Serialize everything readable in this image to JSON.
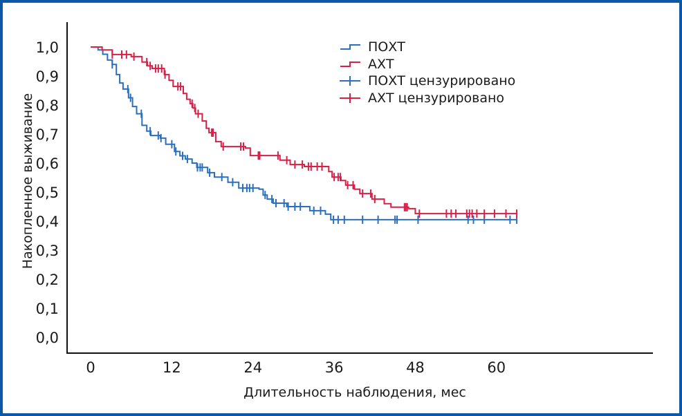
{
  "chart_data": {
    "type": "line",
    "subtype": "kaplan-meier",
    "title": "",
    "xlabel": "Длительность наблюдения, мес",
    "ylabel": "Накопленное выживание",
    "xlim": [
      0,
      83
    ],
    "ylim": [
      0,
      1.0
    ],
    "x_ticks": [
      0,
      12,
      24,
      36,
      48,
      60
    ],
    "x_tick_labels": [
      "0",
      "12",
      "24",
      "36",
      "48",
      "60"
    ],
    "y_ticks": [
      0.0,
      0.1,
      0.2,
      0.3,
      0.4,
      0.5,
      0.6,
      0.7,
      0.8,
      0.9,
      1.0
    ],
    "y_tick_labels": [
      "0,0",
      "0,1",
      "0,2",
      "0,3",
      "0,4",
      "0,5",
      "0,6",
      "0,7",
      "0,8",
      "0,9",
      "1,0"
    ],
    "grid": false,
    "legend_position": "top-center",
    "legend": [
      {
        "label": "ПОХТ",
        "kind": "step",
        "color": "#2a6fbf"
      },
      {
        "label": "АХТ",
        "kind": "step",
        "color": "#d81f45"
      },
      {
        "label": "ПОХТ цензурировано",
        "kind": "censor",
        "color": "#2a6fbf"
      },
      {
        "label": "АХТ цензурировано",
        "kind": "censor",
        "color": "#d81f45"
      }
    ],
    "series": [
      {
        "name": "ПОХТ",
        "color": "#2a6fbf",
        "steps": [
          [
            0,
            1.0
          ],
          [
            1.1,
            0.99
          ],
          [
            1.8,
            0.975
          ],
          [
            2.5,
            0.955
          ],
          [
            3.2,
            0.94
          ],
          [
            3.8,
            0.905
          ],
          [
            4.3,
            0.876
          ],
          [
            4.8,
            0.855
          ],
          [
            5.6,
            0.825
          ],
          [
            6.2,
            0.795
          ],
          [
            6.8,
            0.77
          ],
          [
            7.6,
            0.73
          ],
          [
            8.3,
            0.71
          ],
          [
            8.9,
            0.695
          ],
          [
            10.3,
            0.686
          ],
          [
            11.1,
            0.665
          ],
          [
            12.4,
            0.64
          ],
          [
            13.2,
            0.625
          ],
          [
            14.0,
            0.614
          ],
          [
            15.0,
            0.6
          ],
          [
            15.7,
            0.585
          ],
          [
            17.3,
            0.567
          ],
          [
            18.3,
            0.552
          ],
          [
            20.3,
            0.534
          ],
          [
            21.9,
            0.514
          ],
          [
            24.9,
            0.51
          ],
          [
            25.5,
            0.49
          ],
          [
            26.1,
            0.476
          ],
          [
            27.0,
            0.462
          ],
          [
            29.0,
            0.45
          ],
          [
            32.4,
            0.436
          ],
          [
            34.7,
            0.424
          ],
          [
            35.5,
            0.405
          ],
          [
            63.0,
            0.405
          ]
        ],
        "censored": [
          3.2,
          5.5,
          5.9,
          7.5,
          8.8,
          10.0,
          10.4,
          12.0,
          12.6,
          13.6,
          14.3,
          15.8,
          16.2,
          16.5,
          17.6,
          19.4,
          21.0,
          22.5,
          23.1,
          23.5,
          24.0,
          25.8,
          26.8,
          27.4,
          28.6,
          29.2,
          30.2,
          31.0,
          33.0,
          34.0,
          35.9,
          36.6,
          37.5,
          40.2,
          42.5,
          45.0,
          45.3,
          48.4,
          55.8,
          56.6,
          58.2,
          62.0,
          63.0
        ]
      },
      {
        "name": "АХТ",
        "color": "#d81f45",
        "steps": [
          [
            0,
            1.0
          ],
          [
            1.7,
            0.99
          ],
          [
            3.2,
            0.974
          ],
          [
            6.0,
            0.967
          ],
          [
            7.6,
            0.948
          ],
          [
            8.4,
            0.935
          ],
          [
            9.1,
            0.926
          ],
          [
            10.9,
            0.905
          ],
          [
            11.6,
            0.885
          ],
          [
            12.2,
            0.864
          ],
          [
            13.7,
            0.84
          ],
          [
            14.2,
            0.82
          ],
          [
            14.7,
            0.805
          ],
          [
            15.1,
            0.79
          ],
          [
            15.5,
            0.77
          ],
          [
            16.5,
            0.745
          ],
          [
            17.1,
            0.72
          ],
          [
            17.5,
            0.705
          ],
          [
            18.5,
            0.674
          ],
          [
            19.3,
            0.657
          ],
          [
            22.9,
            0.652
          ],
          [
            23.6,
            0.626
          ],
          [
            27.3,
            0.626
          ],
          [
            28.0,
            0.61
          ],
          [
            29.5,
            0.595
          ],
          [
            31.6,
            0.588
          ],
          [
            35.2,
            0.571
          ],
          [
            35.7,
            0.552
          ],
          [
            37.0,
            0.54
          ],
          [
            37.7,
            0.524
          ],
          [
            39.0,
            0.51
          ],
          [
            39.8,
            0.495
          ],
          [
            41.6,
            0.476
          ],
          [
            43.4,
            0.46
          ],
          [
            44.4,
            0.448
          ],
          [
            47.0,
            0.443
          ],
          [
            48.0,
            0.426
          ],
          [
            63.0,
            0.426
          ]
        ],
        "censored": [
          3.2,
          4.6,
          5.3,
          6.4,
          8.3,
          8.8,
          9.6,
          10.0,
          10.5,
          11.0,
          12.9,
          13.3,
          15.0,
          15.4,
          15.9,
          17.9,
          18.1,
          19.6,
          22.2,
          22.6,
          24.8,
          25.0,
          27.7,
          29.0,
          30.2,
          31.3,
          32.2,
          32.6,
          33.5,
          34.2,
          36.0,
          36.6,
          36.9,
          38.0,
          38.8,
          40.2,
          41.4,
          42.0,
          46.4,
          46.6,
          46.8,
          48.6,
          52.6,
          53.3,
          54.0,
          55.6,
          56.0,
          56.4,
          57.1,
          58.2,
          59.7,
          61.4,
          63.0
        ]
      }
    ]
  }
}
